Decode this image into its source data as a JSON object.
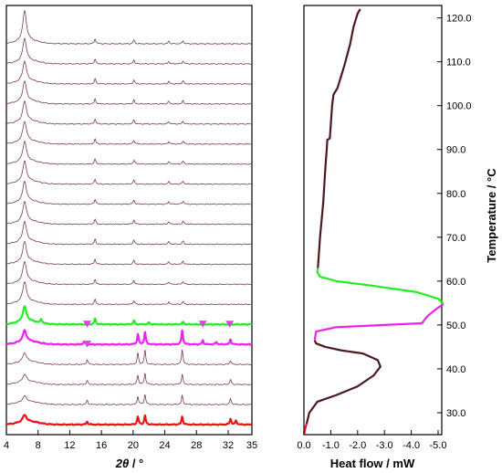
{
  "chart_data": [
    {
      "type": "line",
      "xlabel_symbol": "2θ",
      "xlabel_unit": " / °",
      "xlim": [
        4,
        35
      ],
      "x_ticks": [
        "4",
        "8",
        "12",
        "16",
        "20",
        "24",
        "28",
        "32",
        "35"
      ],
      "x_tick_values": [
        4,
        8,
        12,
        16,
        20,
        24,
        28,
        32,
        35
      ],
      "grid": false,
      "legend": "none",
      "series_colors": {
        "heating_pattern": "#7a3b46",
        "transition_pattern": "#22ee22",
        "highlight_pattern": "#ee22ee",
        "base_pattern": "#ee1111",
        "marker": "#e040e0"
      },
      "patterns": [
        {
          "color": "heating_pattern",
          "peaks": [
            [
              6.3,
              60
            ],
            [
              15.2,
              10
            ],
            [
              20.1,
              8
            ],
            [
              24.5,
              5
            ],
            [
              26.3,
              6
            ]
          ]
        },
        {
          "color": "heating_pattern",
          "peaks": [
            [
              6.3,
              45
            ],
            [
              15.2,
              10
            ],
            [
              20.1,
              8
            ],
            [
              24.5,
              5
            ],
            [
              26.3,
              6
            ]
          ]
        },
        {
          "color": "heating_pattern",
          "peaks": [
            [
              6.3,
              40
            ],
            [
              15.2,
              10
            ],
            [
              20.1,
              8
            ],
            [
              24.5,
              5
            ],
            [
              26.3,
              6
            ]
          ]
        },
        {
          "color": "heating_pattern",
          "peaks": [
            [
              6.3,
              40
            ],
            [
              15.2,
              10
            ],
            [
              20.1,
              8
            ],
            [
              24.5,
              5
            ],
            [
              26.3,
              6
            ]
          ]
        },
        {
          "color": "heating_pattern",
          "peaks": [
            [
              6.3,
              40
            ],
            [
              15.2,
              10
            ],
            [
              20.1,
              8
            ],
            [
              24.5,
              5
            ],
            [
              26.3,
              6
            ]
          ]
        },
        {
          "color": "heating_pattern",
          "peaks": [
            [
              6.3,
              40
            ],
            [
              15.2,
              10
            ],
            [
              20.1,
              8
            ],
            [
              24.5,
              5
            ],
            [
              26.3,
              6
            ]
          ]
        },
        {
          "color": "heating_pattern",
          "peaks": [
            [
              6.3,
              40
            ],
            [
              15.2,
              10
            ],
            [
              20.1,
              8
            ],
            [
              24.5,
              5
            ],
            [
              26.3,
              6
            ]
          ]
        },
        {
          "color": "heating_pattern",
          "peaks": [
            [
              6.3,
              40
            ],
            [
              15.2,
              10
            ],
            [
              20.1,
              8
            ],
            [
              24.5,
              5
            ],
            [
              26.3,
              6
            ]
          ]
        },
        {
          "color": "heating_pattern",
          "peaks": [
            [
              6.3,
              40
            ],
            [
              15.2,
              10
            ],
            [
              20.1,
              8
            ],
            [
              24.5,
              5
            ],
            [
              26.3,
              6
            ]
          ]
        },
        {
          "color": "heating_pattern",
          "peaks": [
            [
              6.3,
              40
            ],
            [
              15.2,
              10
            ],
            [
              20.1,
              8
            ],
            [
              24.5,
              5
            ],
            [
              26.3,
              6
            ]
          ]
        },
        {
          "color": "heating_pattern",
          "peaks": [
            [
              6.3,
              40
            ],
            [
              15.2,
              10
            ],
            [
              20.1,
              8
            ],
            [
              24.5,
              5
            ],
            [
              26.3,
              6
            ]
          ]
        },
        {
          "color": "heating_pattern",
          "peaks": [
            [
              6.3,
              40
            ],
            [
              15.2,
              10
            ],
            [
              20.1,
              8
            ],
            [
              24.5,
              5
            ],
            [
              26.3,
              6
            ]
          ]
        },
        {
          "color": "heating_pattern",
          "peaks": [
            [
              6.3,
              40
            ],
            [
              15.2,
              10
            ],
            [
              20.1,
              8
            ],
            [
              24.5,
              5
            ],
            [
              26.3,
              6
            ]
          ]
        },
        {
          "color": "heating_pattern",
          "peaks": [
            [
              6.3,
              40
            ],
            [
              15.2,
              10
            ],
            [
              20.1,
              8
            ],
            [
              24.5,
              5
            ],
            [
              26.3,
              6
            ]
          ]
        },
        {
          "color": "transition_pattern",
          "peaks": [
            [
              6.3,
              30
            ],
            [
              8.4,
              8
            ],
            [
              15.2,
              12
            ],
            [
              20.1,
              8
            ],
            [
              22.0,
              4
            ],
            [
              26.3,
              5
            ]
          ]
        },
        {
          "color": "highlight_pattern",
          "peaks": [
            [
              6.3,
              22
            ],
            [
              13.8,
              6
            ],
            [
              20.6,
              20
            ],
            [
              21.5,
              25
            ],
            [
              26.2,
              28
            ],
            [
              28.8,
              8
            ],
            [
              30.5,
              5
            ],
            [
              32.3,
              10
            ]
          ]
        },
        {
          "color": "heating_pattern",
          "peaks": [
            [
              6.3,
              18
            ],
            [
              14.2,
              10
            ],
            [
              20.6,
              22
            ],
            [
              21.5,
              28
            ],
            [
              26.2,
              30
            ],
            [
              32.3,
              8
            ]
          ]
        },
        {
          "color": "heating_pattern",
          "peaks": [
            [
              6.3,
              15
            ],
            [
              14.2,
              8
            ],
            [
              20.6,
              18
            ],
            [
              21.5,
              22
            ],
            [
              26.2,
              20
            ],
            [
              32.3,
              10
            ]
          ]
        },
        {
          "color": "heating_pattern",
          "peaks": [
            [
              6.3,
              12
            ],
            [
              14.2,
              8
            ],
            [
              20.6,
              16
            ],
            [
              21.5,
              20
            ],
            [
              26.2,
              18
            ],
            [
              32.3,
              12
            ]
          ]
        },
        {
          "color": "base_pattern",
          "peaks": [
            [
              6.3,
              14
            ],
            [
              14.2,
              6
            ],
            [
              20.6,
              16
            ],
            [
              21.5,
              18
            ],
            [
              26.2,
              16
            ],
            [
              32.3,
              12
            ],
            [
              33.0,
              8
            ]
          ]
        }
      ],
      "markers": [
        {
          "pattern_index": 15,
          "x": 14.2
        },
        {
          "pattern_index": 15,
          "x": 28.8
        },
        {
          "pattern_index": 15,
          "x": 32.2
        },
        {
          "pattern_index": 16,
          "x": 14.2
        }
      ]
    },
    {
      "type": "line",
      "xlabel": "Heat flow / mW",
      "ylabel": "Temperature / °C",
      "xlim": [
        0.0,
        -5.0
      ],
      "ylim": [
        25,
        122
      ],
      "x_ticks": [
        "0.0",
        "-1.0",
        "-2.0",
        "-3.0",
        "-4.0",
        "-5.0"
      ],
      "x_tick_values": [
        0.0,
        -1.0,
        -2.0,
        -3.0,
        -4.0,
        -5.0
      ],
      "y_ticks": [
        "30.0",
        "40.0",
        "50.0",
        "60.0",
        "70.0",
        "80.0",
        "90.0",
        "100.0",
        "110.0",
        "120.0"
      ],
      "y_tick_values": [
        30,
        40,
        50,
        60,
        70,
        80,
        90,
        100,
        110,
        120
      ],
      "grid": false,
      "legend": "none",
      "segments": [
        {
          "color": "#ee1111",
          "points": [
            [
              0.0,
              25.0
            ],
            [
              -0.05,
              26.5
            ],
            [
              -0.1,
              27.5
            ]
          ]
        },
        {
          "color": "#4a1a1c",
          "points": [
            [
              -0.1,
              27.5
            ],
            [
              -0.2,
              30.0
            ],
            [
              -0.5,
              32.5
            ],
            [
              -1.2,
              34.0
            ],
            [
              -2.0,
              36.0
            ],
            [
              -2.6,
              38.5
            ],
            [
              -2.85,
              40.5
            ],
            [
              -2.75,
              42.0
            ],
            [
              -2.2,
              43.5
            ],
            [
              -1.4,
              44.2
            ],
            [
              -0.8,
              45.0
            ],
            [
              -0.45,
              45.8
            ],
            [
              -0.4,
              46.5
            ]
          ]
        },
        {
          "color": "#ee22ee",
          "points": [
            [
              -0.4,
              46.5
            ],
            [
              -0.45,
              48.5
            ],
            [
              -1.2,
              49.5
            ],
            [
              -3.0,
              50.0
            ],
            [
              -4.4,
              50.4
            ],
            [
              -4.6,
              52.0
            ],
            [
              -4.9,
              53.5
            ],
            [
              -5.2,
              54.8
            ]
          ]
        },
        {
          "color": "#22ee22",
          "points": [
            [
              -5.2,
              54.8
            ],
            [
              -5.0,
              56.0
            ],
            [
              -4.2,
              57.5
            ],
            [
              -2.5,
              59.0
            ],
            [
              -1.2,
              60.0
            ],
            [
              -0.6,
              61.0
            ],
            [
              -0.5,
              62.0
            ],
            [
              -0.52,
              63.0
            ]
          ]
        },
        {
          "color": "#4a1a1c",
          "points": [
            [
              -0.52,
              63.0
            ],
            [
              -0.6,
              70.0
            ],
            [
              -0.72,
              78.0
            ],
            [
              -0.8,
              86.0
            ],
            [
              -0.85,
              90.0
            ],
            [
              -0.87,
              92.2
            ],
            [
              -0.96,
              92.5
            ],
            [
              -0.97,
              93.0
            ],
            [
              -1.05,
              100.0
            ],
            [
              -1.1,
              102.5
            ],
            [
              -1.25,
              104.0
            ],
            [
              -1.5,
              109.0
            ],
            [
              -1.72,
              114.0
            ],
            [
              -1.85,
              118.0
            ],
            [
              -2.0,
              121.0
            ],
            [
              -2.1,
              122.0
            ]
          ]
        }
      ]
    }
  ]
}
